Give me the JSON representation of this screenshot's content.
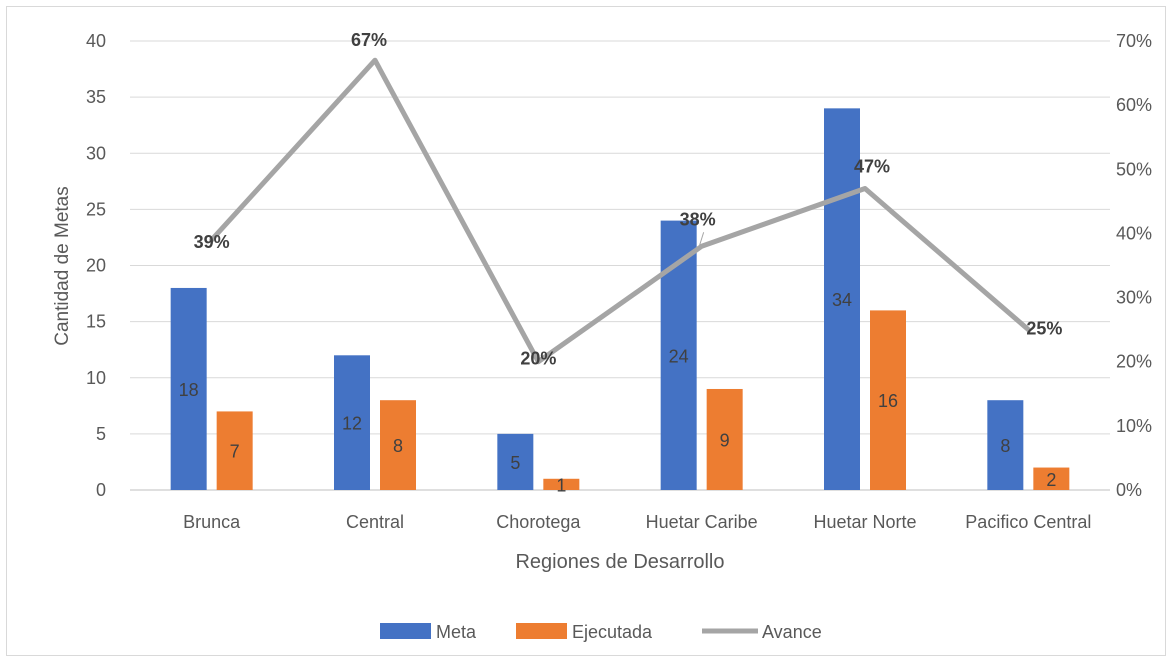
{
  "chart_data": {
    "type": "bar",
    "categories": [
      "Brunca",
      "Central",
      "Chorotega",
      "Huetar Caribe",
      "Huetar Norte",
      "Pacifico Central"
    ],
    "series": [
      {
        "name": "Meta",
        "type": "bar",
        "axis": "left",
        "color": "#4472c4",
        "values": [
          18,
          12,
          5,
          24,
          34,
          8
        ]
      },
      {
        "name": "Ejecutada",
        "type": "bar",
        "axis": "left",
        "color": "#ed7d31",
        "values": [
          7,
          8,
          1,
          9,
          16,
          2
        ]
      },
      {
        "name": "Avance",
        "type": "line",
        "axis": "right",
        "color": "#a5a5a5",
        "values": [
          0.39,
          0.67,
          0.2,
          0.38,
          0.47,
          0.25
        ]
      }
    ],
    "line_labels": [
      "39%",
      "67%",
      "20%",
      "38%",
      "47%",
      "25%"
    ],
    "xlabel": "Regiones de Desarrollo",
    "ylabel": "Cantidad de Metas",
    "ylim": [
      0,
      40
    ],
    "yticks": [
      "0",
      "5",
      "10",
      "15",
      "20",
      "25",
      "30",
      "35",
      "40"
    ],
    "y2lim": [
      0,
      0.7
    ],
    "y2ticks": [
      "0%",
      "10%",
      "20%",
      "30%",
      "40%",
      "50%",
      "60%",
      "70%"
    ],
    "grid": true,
    "legend_position": "bottom"
  }
}
